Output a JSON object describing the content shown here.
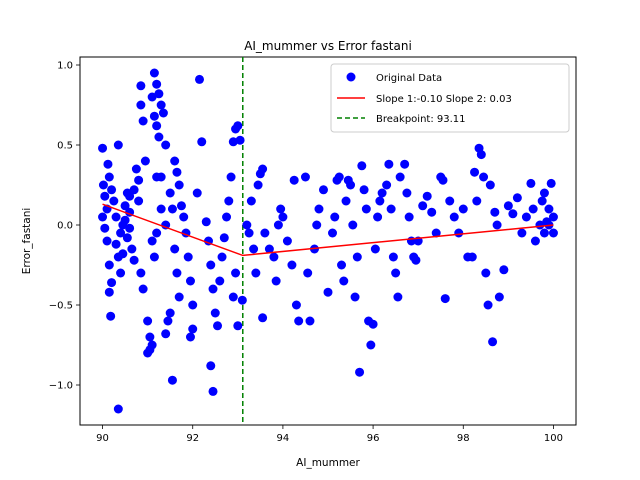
{
  "chart_data": {
    "type": "scatter",
    "title": "AI_mummer vs Error fastani",
    "xlabel": "AI_mummer",
    "ylabel": "Error_fastani",
    "xlim": [
      89.5,
      100.5
    ],
    "ylim": [
      -1.25,
      1.05
    ],
    "x_ticks": [
      90,
      92,
      94,
      96,
      98,
      100
    ],
    "y_ticks": [
      -1.0,
      -0.5,
      0.0,
      0.5,
      1.0
    ],
    "x_tick_labels": [
      "90",
      "92",
      "94",
      "96",
      "98",
      "100"
    ],
    "y_tick_labels": [
      "−1.0",
      "−0.5",
      "0.0",
      "0.5",
      "1.0"
    ],
    "grid": false,
    "legend": {
      "position": "top-right",
      "entries": [
        "Original Data",
        "Slope 1:-0.10 Slope 2: 0.03",
        "Breakpoint: 93.11"
      ]
    },
    "series": [
      {
        "name": "Original Data",
        "kind": "scatter",
        "color": "#0000ff",
        "points": [
          [
            90.0,
            0.48
          ],
          [
            90.02,
            0.25
          ],
          [
            90.05,
            0.18
          ],
          [
            90.1,
            0.1
          ],
          [
            90.12,
            0.38
          ],
          [
            90.15,
            0.3
          ],
          [
            90.2,
            0.22
          ],
          [
            90.25,
            0.15
          ],
          [
            90.3,
            0.05
          ],
          [
            90.35,
            0.5
          ],
          [
            90.0,
            0.05
          ],
          [
            90.05,
            -0.02
          ],
          [
            90.1,
            -0.1
          ],
          [
            90.15,
            -0.25
          ],
          [
            90.2,
            -0.36
          ],
          [
            90.15,
            -0.42
          ],
          [
            90.18,
            -0.57
          ],
          [
            90.3,
            -0.12
          ],
          [
            90.4,
            -0.05
          ],
          [
            90.45,
            0.0
          ],
          [
            90.5,
            0.12
          ],
          [
            90.55,
            0.2
          ],
          [
            90.6,
            0.08
          ],
          [
            90.65,
            -0.15
          ],
          [
            90.7,
            -0.22
          ],
          [
            90.75,
            0.35
          ],
          [
            90.8,
            0.28
          ],
          [
            90.85,
            0.75
          ],
          [
            90.9,
            0.65
          ],
          [
            90.95,
            0.4
          ],
          [
            90.7,
            0.22
          ],
          [
            90.6,
            0.18
          ],
          [
            90.55,
            -0.08
          ],
          [
            90.45,
            -0.18
          ],
          [
            90.4,
            -0.3
          ],
          [
            90.35,
            -0.2
          ],
          [
            90.5,
            0.03
          ],
          [
            90.6,
            -0.02
          ],
          [
            90.8,
            0.15
          ],
          [
            90.85,
            0.87
          ],
          [
            90.35,
            -1.15
          ],
          [
            90.85,
            -0.3
          ],
          [
            90.9,
            -0.4
          ],
          [
            91.0,
            -0.6
          ],
          [
            91.05,
            -0.7
          ],
          [
            91.1,
            -0.75
          ],
          [
            91.0,
            -0.8
          ],
          [
            91.05,
            -0.78
          ],
          [
            91.15,
            0.95
          ],
          [
            91.2,
            0.88
          ],
          [
            91.1,
            0.8
          ],
          [
            91.25,
            0.82
          ],
          [
            91.3,
            0.75
          ],
          [
            91.35,
            0.7
          ],
          [
            91.2,
            0.62
          ],
          [
            91.15,
            0.68
          ],
          [
            91.25,
            0.55
          ],
          [
            91.4,
            0.5
          ],
          [
            91.3,
            0.3
          ],
          [
            91.2,
            0.3
          ],
          [
            91.1,
            -0.1
          ],
          [
            91.15,
            -0.2
          ],
          [
            91.2,
            -0.05
          ],
          [
            91.3,
            0.1
          ],
          [
            91.4,
            0.0
          ],
          [
            91.5,
            0.2
          ],
          [
            91.55,
            0.1
          ],
          [
            91.6,
            -0.15
          ],
          [
            91.65,
            -0.3
          ],
          [
            91.7,
            -0.45
          ],
          [
            91.55,
            -0.97
          ],
          [
            91.6,
            0.4
          ],
          [
            91.65,
            0.33
          ],
          [
            91.7,
            0.25
          ],
          [
            91.75,
            0.12
          ],
          [
            91.8,
            0.05
          ],
          [
            91.85,
            -0.05
          ],
          [
            91.9,
            -0.2
          ],
          [
            91.95,
            -0.35
          ],
          [
            92.0,
            -0.5
          ],
          [
            92.0,
            -0.65
          ],
          [
            91.95,
            -0.7
          ],
          [
            91.4,
            -0.68
          ],
          [
            91.45,
            -0.6
          ],
          [
            91.5,
            -0.55
          ],
          [
            92.1,
            0.2
          ],
          [
            92.15,
            0.91
          ],
          [
            92.2,
            0.52
          ],
          [
            92.3,
            0.02
          ],
          [
            92.35,
            -0.1
          ],
          [
            92.4,
            -0.25
          ],
          [
            92.45,
            -0.4
          ],
          [
            92.5,
            -0.55
          ],
          [
            92.55,
            -0.63
          ],
          [
            92.4,
            -0.88
          ],
          [
            92.45,
            -1.04
          ],
          [
            92.6,
            -0.35
          ],
          [
            92.65,
            -0.2
          ],
          [
            92.7,
            -0.08
          ],
          [
            92.75,
            0.05
          ],
          [
            92.8,
            0.15
          ],
          [
            92.85,
            0.3
          ],
          [
            92.9,
            0.52
          ],
          [
            92.95,
            0.6
          ],
          [
            93.0,
            0.62
          ],
          [
            93.05,
            0.53
          ],
          [
            92.9,
            -0.45
          ],
          [
            92.95,
            -0.3
          ],
          [
            93.0,
            -0.63
          ],
          [
            93.1,
            -0.47
          ],
          [
            93.2,
            0.0
          ],
          [
            93.25,
            -0.05
          ],
          [
            93.3,
            0.15
          ],
          [
            93.35,
            -0.15
          ],
          [
            93.4,
            -0.3
          ],
          [
            93.45,
            0.25
          ],
          [
            93.5,
            0.32
          ],
          [
            93.55,
            0.35
          ],
          [
            93.6,
            -0.05
          ],
          [
            93.55,
            -0.58
          ],
          [
            93.7,
            -0.15
          ],
          [
            93.8,
            -0.2
          ],
          [
            93.85,
            -0.35
          ],
          [
            93.9,
            0.0
          ],
          [
            93.95,
            0.1
          ],
          [
            94.0,
            0.05
          ],
          [
            94.1,
            -0.1
          ],
          [
            94.2,
            -0.25
          ],
          [
            94.25,
            0.28
          ],
          [
            94.3,
            -0.5
          ],
          [
            94.35,
            -0.6
          ],
          [
            94.5,
            0.3
          ],
          [
            94.55,
            -0.3
          ],
          [
            94.6,
            -0.6
          ],
          [
            94.7,
            -0.15
          ],
          [
            94.75,
            0.0
          ],
          [
            94.8,
            0.1
          ],
          [
            94.9,
            0.22
          ],
          [
            95.0,
            -0.42
          ],
          [
            95.1,
            -0.05
          ],
          [
            95.15,
            0.05
          ],
          [
            95.2,
            0.28
          ],
          [
            95.25,
            0.3
          ],
          [
            95.3,
            -0.25
          ],
          [
            95.35,
            -0.35
          ],
          [
            95.4,
            0.15
          ],
          [
            95.45,
            0.28
          ],
          [
            95.5,
            0.25
          ],
          [
            95.55,
            0.0
          ],
          [
            95.6,
            -0.45
          ],
          [
            95.65,
            -0.2
          ],
          [
            95.7,
            -0.92
          ],
          [
            95.75,
            0.37
          ],
          [
            95.8,
            0.22
          ],
          [
            95.85,
            0.1
          ],
          [
            95.9,
            -0.6
          ],
          [
            95.95,
            -0.75
          ],
          [
            96.0,
            -0.62
          ],
          [
            96.05,
            -0.15
          ],
          [
            96.1,
            0.05
          ],
          [
            96.15,
            0.15
          ],
          [
            96.2,
            0.2
          ],
          [
            96.3,
            0.25
          ],
          [
            96.35,
            0.38
          ],
          [
            96.4,
            0.1
          ],
          [
            96.45,
            -0.2
          ],
          [
            96.5,
            -0.3
          ],
          [
            96.55,
            -0.45
          ],
          [
            96.6,
            0.3
          ],
          [
            96.7,
            0.38
          ],
          [
            96.75,
            0.2
          ],
          [
            96.8,
            0.05
          ],
          [
            96.85,
            -0.1
          ],
          [
            96.9,
            -0.2
          ],
          [
            96.95,
            -0.22
          ],
          [
            97.0,
            -0.1
          ],
          [
            97.1,
            0.12
          ],
          [
            97.2,
            0.18
          ],
          [
            97.3,
            0.08
          ],
          [
            97.4,
            -0.05
          ],
          [
            97.5,
            0.3
          ],
          [
            97.55,
            0.28
          ],
          [
            97.6,
            -0.46
          ],
          [
            97.7,
            0.15
          ],
          [
            97.8,
            0.05
          ],
          [
            97.9,
            -0.05
          ],
          [
            98.0,
            0.1
          ],
          [
            98.1,
            -0.2
          ],
          [
            98.2,
            -0.2
          ],
          [
            98.25,
            0.33
          ],
          [
            98.3,
            0.15
          ],
          [
            98.35,
            0.48
          ],
          [
            98.4,
            0.44
          ],
          [
            98.45,
            0.3
          ],
          [
            98.5,
            -0.3
          ],
          [
            98.55,
            -0.5
          ],
          [
            98.6,
            0.25
          ],
          [
            98.65,
            -0.73
          ],
          [
            98.7,
            0.08
          ],
          [
            98.75,
            0.0
          ],
          [
            98.8,
            -0.45
          ],
          [
            98.9,
            -0.28
          ],
          [
            99.0,
            0.12
          ],
          [
            99.1,
            0.07
          ],
          [
            99.2,
            0.17
          ],
          [
            99.3,
            -0.05
          ],
          [
            99.4,
            0.05
          ],
          [
            99.5,
            0.26
          ],
          [
            99.55,
            0.1
          ],
          [
            99.6,
            -0.1
          ],
          [
            99.7,
            0.0
          ],
          [
            99.75,
            0.15
          ],
          [
            99.8,
            -0.05
          ],
          [
            99.85,
            0.02
          ],
          [
            99.9,
            0.1
          ],
          [
            99.95,
            0.26
          ],
          [
            100.0,
            0.05
          ],
          [
            100.0,
            -0.05
          ],
          [
            99.9,
            0.0
          ],
          [
            99.8,
            0.2
          ]
        ]
      },
      {
        "name": "Slope 1:-0.10 Slope 2: 0.03",
        "kind": "line",
        "color": "#ff0000",
        "points": [
          [
            90.0,
            0.13
          ],
          [
            93.11,
            -0.19
          ],
          [
            100.0,
            0.0
          ]
        ]
      },
      {
        "name": "Breakpoint: 93.11",
        "kind": "vline",
        "color": "#008000",
        "x": 93.11
      }
    ]
  }
}
